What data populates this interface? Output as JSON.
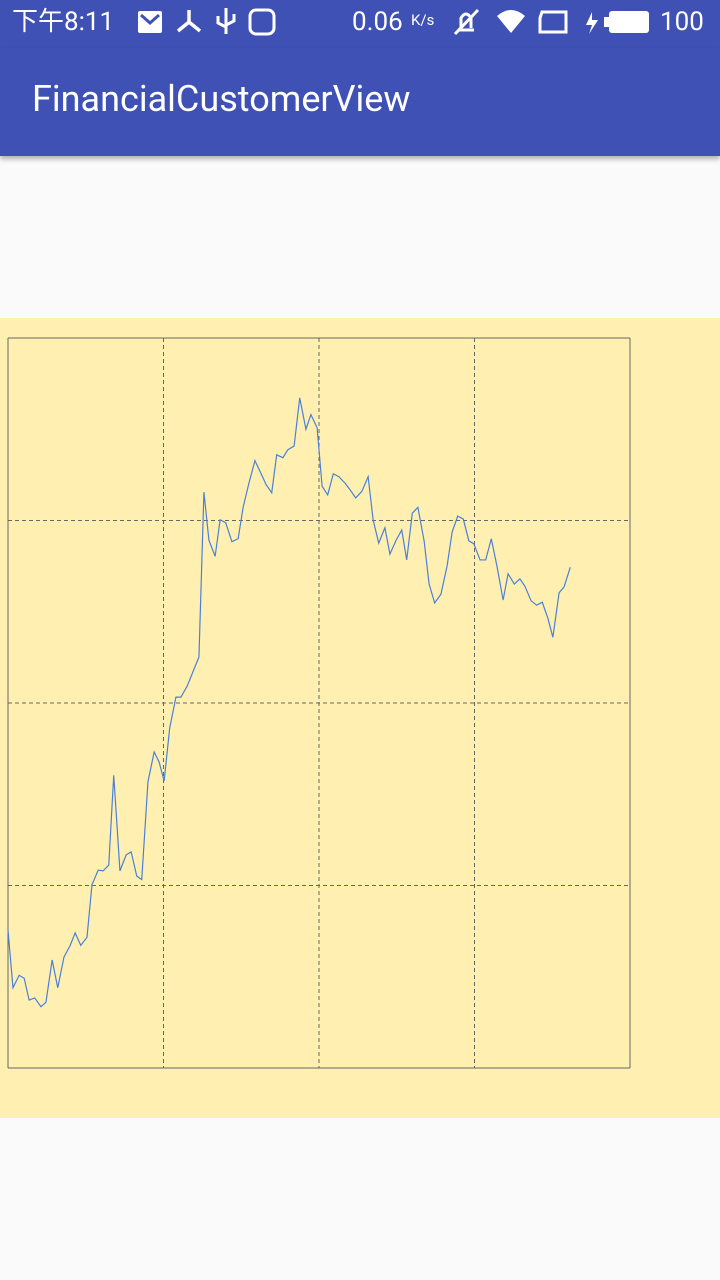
{
  "status_bar": {
    "time": "下午8:11",
    "speed": "0.06",
    "speed_unit": "K/s",
    "battery": "100"
  },
  "app_bar": {
    "title": "FinancialCustomerView"
  },
  "chart_data": {
    "type": "line",
    "background": "#fff0b2",
    "grid": true,
    "xlim": [
      0,
      100
    ],
    "ylim": [
      0,
      100
    ],
    "xticks": [
      0,
      25,
      50,
      75,
      100
    ],
    "yticks": [
      0,
      25,
      50,
      75,
      100
    ],
    "series": [
      {
        "color": "#4a80d8",
        "x": [
          0,
          0.8,
          1.8,
          2.6,
          3.4,
          4.3,
          5.3,
          6.1,
          7.1,
          8.0,
          9.0,
          10.0,
          10.8,
          11.7,
          12.7,
          13.5,
          14.5,
          15.3,
          16.2,
          17.0,
          18.0,
          19.0,
          19.8,
          20.7,
          21.5,
          22.5,
          23.5,
          24.3,
          25.1,
          26.0,
          27.0,
          27.8,
          28.8,
          29.7,
          30.7,
          31.5,
          32.3,
          33.3,
          34.1,
          35.0,
          36.0,
          37.0,
          37.8,
          38.7,
          39.7,
          40.7,
          41.5,
          42.4,
          43.2,
          44.2,
          45.0,
          46.0,
          46.9,
          47.9,
          48.7,
          49.7,
          50.5,
          51.4,
          52.3,
          53.2,
          54.2,
          55.0,
          55.9,
          56.9,
          57.9,
          58.7,
          59.6,
          60.6,
          61.4,
          62.4,
          63.3,
          64.1,
          65.0,
          65.9,
          66.9,
          67.7,
          68.6,
          69.6,
          70.6,
          71.4,
          72.3,
          73.2,
          74.1,
          74.9,
          75.9,
          76.8,
          77.7,
          78.6,
          79.6,
          80.4,
          81.4,
          82.3,
          83.1,
          84.1,
          85.0,
          85.9,
          86.8,
          87.6,
          88.6,
          89.4,
          90.4
        ],
        "values": [
          18.9,
          11.0,
          12.7,
          12.3,
          9.3,
          9.6,
          8.4,
          9.0,
          14.8,
          11.0,
          15.2,
          16.8,
          18.5,
          16.8,
          17.9,
          25.1,
          27.1,
          27.0,
          27.8,
          40.1,
          27.0,
          29.2,
          29.6,
          26.3,
          25.8,
          39.2,
          43.3,
          41.9,
          39.3,
          46.6,
          50.8,
          50.8,
          52.3,
          54.2,
          56.3,
          78.9,
          72.3,
          70.1,
          75.1,
          74.7,
          72.1,
          72.5,
          76.8,
          80.0,
          83.2,
          81.4,
          79.9,
          78.8,
          84.0,
          83.6,
          84.7,
          85.2,
          91.8,
          87.5,
          89.5,
          87.7,
          79.7,
          78.5,
          81.4,
          81.0,
          80.1,
          79.2,
          78.1,
          79.0,
          81.0,
          75.1,
          71.9,
          74.0,
          70.4,
          72.3,
          73.7,
          69.6,
          76.0,
          76.8,
          72.2,
          66.3,
          63.7,
          64.9,
          68.8,
          73.4,
          75.6,
          75.2,
          72.2,
          71.8,
          69.6,
          69.6,
          72.5,
          68.8,
          64.1,
          67.7,
          66.3,
          67.0,
          66.0,
          64.0,
          63.4,
          63.8,
          61.6,
          59.0,
          65.1,
          65.9,
          68.6
        ]
      }
    ]
  }
}
